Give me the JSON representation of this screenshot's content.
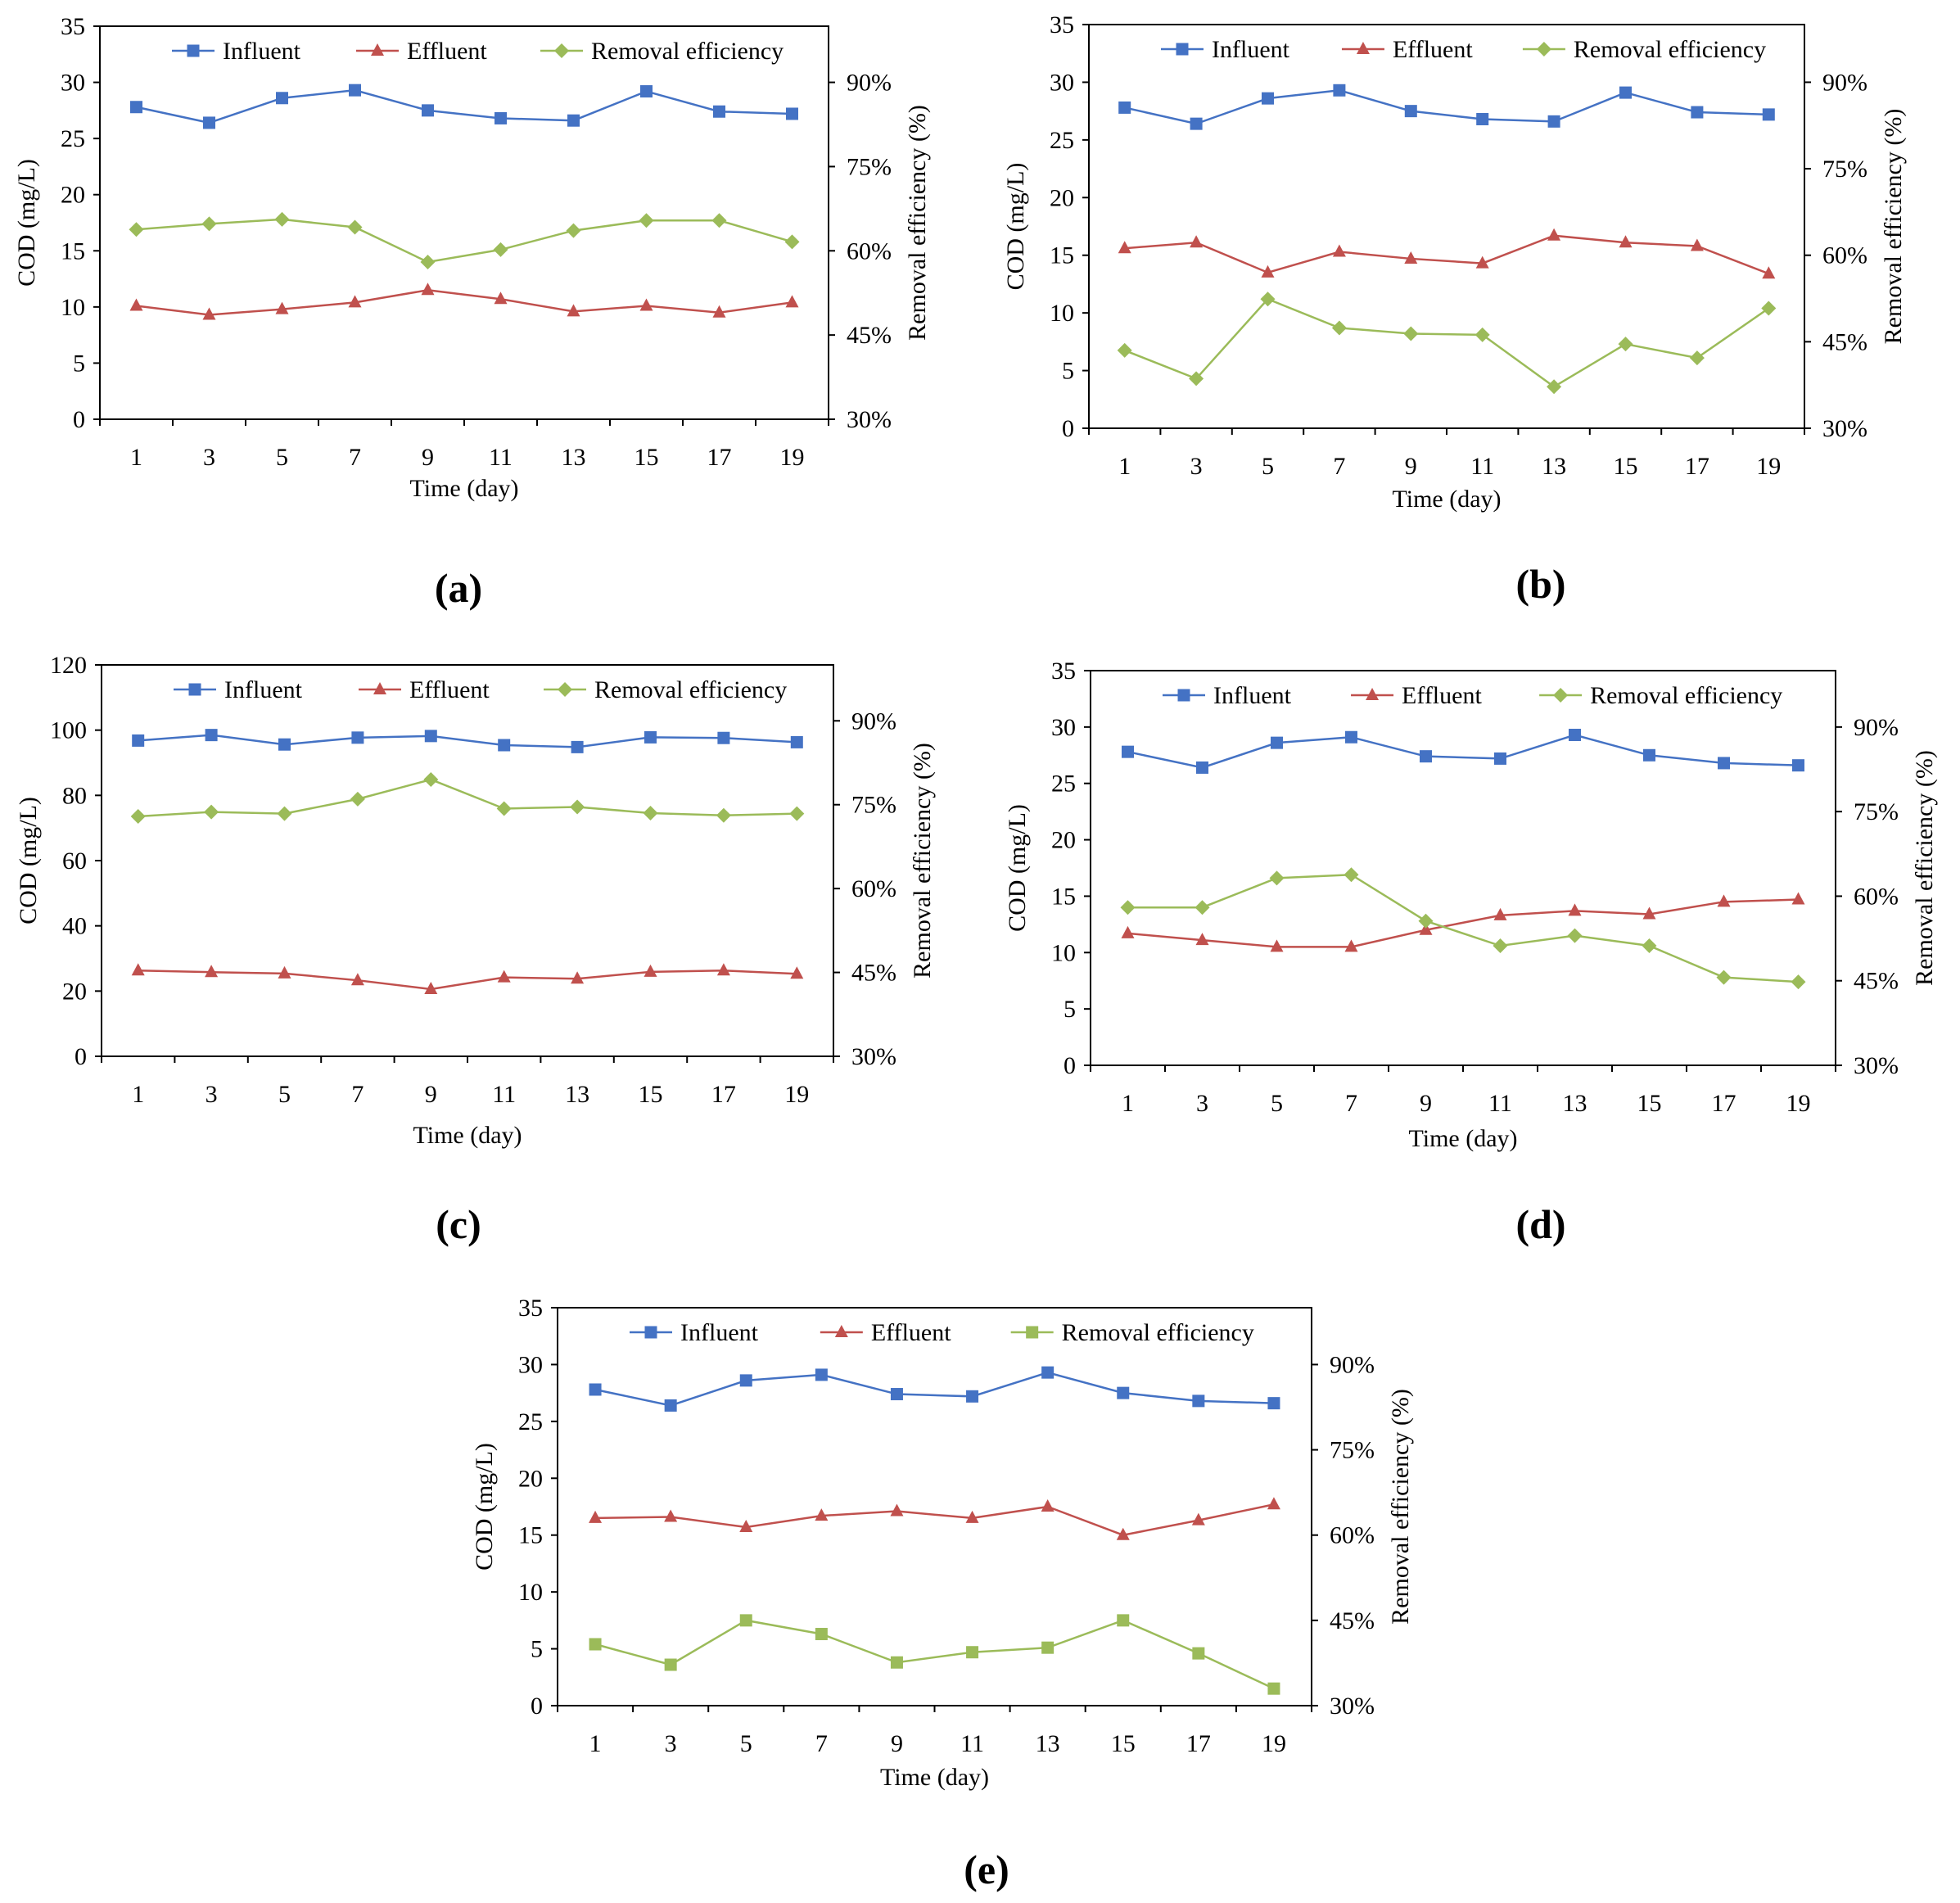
{
  "colors": {
    "influent": "#4472C4",
    "effluent": "#C0504D",
    "removal": "#9BBB59",
    "axis": "#000000"
  },
  "chart_data": [
    {
      "panel": "(a)",
      "type": "line",
      "x": [
        1,
        3,
        5,
        7,
        9,
        11,
        13,
        15,
        17,
        19
      ],
      "xlabel": "Time  (day)",
      "ylabel": "COD (mg/L)",
      "y2label": "Removal efficiency (%)",
      "ylim": [
        0,
        35
      ],
      "yticks": [
        "0",
        "5",
        "10",
        "15",
        "20",
        "25",
        "30",
        "35"
      ],
      "y2lim": [
        30,
        100
      ],
      "y2ticks": [
        "30%",
        "45%",
        "60%",
        "75%",
        "90%"
      ],
      "legend": [
        "Influent",
        "Effluent",
        "Removal efficiency"
      ],
      "series": [
        {
          "name": "Influent",
          "axis": "left",
          "marker": "square",
          "color": "#4472C4",
          "values": [
            27.8,
            26.4,
            28.6,
            29.3,
            27.5,
            26.8,
            26.6,
            29.2,
            27.4,
            27.2
          ]
        },
        {
          "name": "Effluent",
          "axis": "left",
          "marker": "triangle",
          "color": "#C0504D",
          "values": [
            10.1,
            9.3,
            9.8,
            10.4,
            11.5,
            10.7,
            9.6,
            10.1,
            9.5,
            10.4
          ]
        },
        {
          "name": "Removal efficiency",
          "axis": "right",
          "marker": "diamond",
          "color": "#9BBB59",
          "values": [
            63.8,
            64.8,
            65.6,
            64.2,
            58.0,
            60.2,
            63.6,
            65.4,
            65.4,
            61.6
          ]
        }
      ]
    },
    {
      "panel": "(b)",
      "type": "line",
      "x": [
        1,
        3,
        5,
        7,
        9,
        11,
        13,
        15,
        17,
        19
      ],
      "xlabel": "Time (day)",
      "ylabel": "COD (mg/L)",
      "y2label": "Removal efficiency (%)",
      "ylim": [
        0,
        35
      ],
      "yticks": [
        "0",
        "5",
        "10",
        "15",
        "20",
        "25",
        "30",
        "35"
      ],
      "y2lim": [
        30,
        100
      ],
      "y2ticks": [
        "30%",
        "45%",
        "60%",
        "75%",
        "90%"
      ],
      "legend": [
        "Influent",
        "Effluent",
        "Removal efficiency"
      ],
      "series": [
        {
          "name": "Influent",
          "axis": "left",
          "marker": "square",
          "color": "#4472C4",
          "values": [
            27.8,
            26.4,
            28.6,
            29.3,
            27.5,
            26.8,
            26.6,
            29.1,
            27.4,
            27.2
          ]
        },
        {
          "name": "Effluent",
          "axis": "left",
          "marker": "triangle",
          "color": "#C0504D",
          "values": [
            15.6,
            16.1,
            13.5,
            15.3,
            14.7,
            14.3,
            16.7,
            16.1,
            15.8,
            13.4
          ]
        },
        {
          "name": "Removal efficiency",
          "axis": "right",
          "marker": "diamond",
          "color": "#9BBB59",
          "values": [
            43.5,
            38.6,
            52.4,
            47.4,
            46.4,
            46.2,
            37.2,
            44.6,
            42.2,
            50.8
          ]
        }
      ]
    },
    {
      "panel": "(c)",
      "type": "line",
      "x": [
        1,
        3,
        5,
        7,
        9,
        11,
        13,
        15,
        17,
        19
      ],
      "xlabel": "Time (day)",
      "ylabel": "COD (mg/L)",
      "y2label": "Removal efficiency (%)",
      "ylim": [
        0,
        120
      ],
      "yticks": [
        "0",
        "20",
        "40",
        "60",
        "80",
        "100",
        "120"
      ],
      "y2lim": [
        30,
        100
      ],
      "y2ticks": [
        "30%",
        "45%",
        "60%",
        "75%",
        "90%"
      ],
      "legend": [
        "Influent",
        "Effluent",
        "Removal efficiency"
      ],
      "series": [
        {
          "name": "Influent",
          "axis": "left",
          "marker": "square",
          "color": "#4472C4",
          "values": [
            96.8,
            98.5,
            95.6,
            97.7,
            98.2,
            95.4,
            94.8,
            97.8,
            97.6,
            96.3
          ]
        },
        {
          "name": "Effluent",
          "axis": "left",
          "marker": "triangle",
          "color": "#C0504D",
          "values": [
            26.3,
            25.8,
            25.4,
            23.3,
            20.6,
            24.2,
            23.8,
            25.9,
            26.3,
            25.3
          ]
        },
        {
          "name": "Removal efficiency",
          "axis": "right",
          "marker": "diamond",
          "color": "#9BBB59",
          "values": [
            72.9,
            73.7,
            73.4,
            76.0,
            79.5,
            74.3,
            74.6,
            73.5,
            73.1,
            73.4
          ]
        }
      ]
    },
    {
      "panel": "(d)",
      "type": "line",
      "x": [
        1,
        3,
        5,
        7,
        9,
        11,
        13,
        15,
        17,
        19
      ],
      "xlabel": "Time (day)",
      "ylabel": "COD (mg/L)",
      "y2label": "Removal efficiency (%)",
      "ylim": [
        0,
        35
      ],
      "yticks": [
        "0",
        "5",
        "10",
        "15",
        "20",
        "25",
        "30",
        "35"
      ],
      "y2lim": [
        30,
        100
      ],
      "y2ticks": [
        "30%",
        "45%",
        "60%",
        "75%",
        "90%"
      ],
      "legend": [
        "Influent",
        "Effluent",
        "Removal efficiency"
      ],
      "series": [
        {
          "name": "Influent",
          "axis": "left",
          "marker": "square",
          "color": "#4472C4",
          "values": [
            27.8,
            26.4,
            28.6,
            29.1,
            27.4,
            27.2,
            29.3,
            27.5,
            26.8,
            26.6
          ]
        },
        {
          "name": "Effluent",
          "axis": "left",
          "marker": "triangle",
          "color": "#C0504D",
          "values": [
            11.7,
            11.1,
            10.5,
            10.5,
            12.0,
            13.3,
            13.7,
            13.4,
            14.5,
            14.7
          ]
        },
        {
          "name": "Removal efficiency",
          "axis": "right",
          "marker": "diamond",
          "color": "#9BBB59",
          "values": [
            58.0,
            58.0,
            63.2,
            63.8,
            55.6,
            51.2,
            53.0,
            51.2,
            45.6,
            44.8
          ]
        }
      ]
    },
    {
      "panel": "(e)",
      "type": "line",
      "x": [
        1,
        3,
        5,
        7,
        9,
        11,
        13,
        15,
        17,
        19
      ],
      "xlabel": "Time (day)",
      "ylabel": "COD (mg/L)",
      "y2label": "Removal efficiency (%)",
      "ylim": [
        0,
        35
      ],
      "yticks": [
        "0",
        "5",
        "10",
        "15",
        "20",
        "25",
        "30",
        "35"
      ],
      "y2lim": [
        30,
        100
      ],
      "y2ticks": [
        "30%",
        "45%",
        "60%",
        "75%",
        "90%"
      ],
      "legend": [
        "Influent",
        "Effluent",
        "Removal efficiency"
      ],
      "series": [
        {
          "name": "Influent",
          "axis": "left",
          "marker": "square",
          "color": "#4472C4",
          "values": [
            27.8,
            26.4,
            28.6,
            29.1,
            27.4,
            27.2,
            29.3,
            27.5,
            26.8,
            26.6
          ]
        },
        {
          "name": "Effluent",
          "axis": "left",
          "marker": "triangle",
          "color": "#C0504D",
          "values": [
            16.5,
            16.6,
            15.7,
            16.7,
            17.1,
            16.5,
            17.5,
            15.0,
            16.3,
            17.7
          ]
        },
        {
          "name": "Removal efficiency",
          "axis": "right",
          "marker": "square",
          "color": "#9BBB59",
          "values": [
            40.8,
            37.2,
            45.0,
            42.6,
            37.6,
            39.4,
            40.2,
            45.0,
            39.2,
            33.0
          ]
        }
      ]
    }
  ]
}
